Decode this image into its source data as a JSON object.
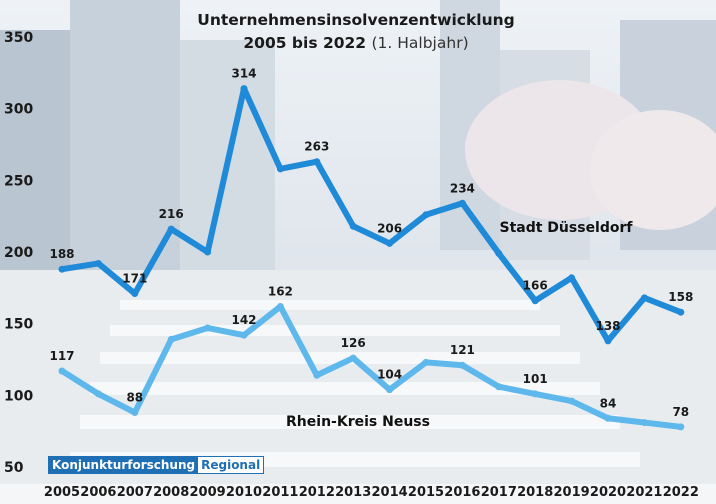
{
  "chart_data": {
    "type": "line",
    "title": "Unternehmensinsolvenzentwicklung",
    "subtitle_bold": "2005 bis 2022",
    "subtitle_light": "(1. Halbjahr)",
    "categories": [
      "2005",
      "2006",
      "2007",
      "2008",
      "2009",
      "2010",
      "2011",
      "2012",
      "2013",
      "2014",
      "2015",
      "2016",
      "2017",
      "2018",
      "2019",
      "2020",
      "2021",
      "2022"
    ],
    "ylim": [
      50,
      350
    ],
    "yticks": [
      50,
      100,
      150,
      200,
      250,
      300,
      350
    ],
    "grid": false,
    "series": [
      {
        "name": "Stadt Düsseldorf",
        "color": "#1f8ad8",
        "values": [
          188,
          192,
          171,
          216,
          200,
          314,
          258,
          263,
          218,
          206,
          226,
          234,
          199,
          166,
          182,
          138,
          168,
          158
        ],
        "labeled": {
          "0": "188",
          "2": "171",
          "3": "216",
          "5": "314",
          "7": "263",
          "9": "206",
          "11": "234",
          "13": "166",
          "15": "138",
          "17": "158"
        }
      },
      {
        "name": "Rhein-Kreis Neuss",
        "color": "#5fb8ec",
        "values": [
          117,
          101,
          88,
          139,
          147,
          142,
          162,
          114,
          126,
          104,
          123,
          121,
          106,
          101,
          96,
          84,
          81,
          78
        ],
        "labeled": {
          "0": "117",
          "2": "88",
          "5": "142",
          "6": "162",
          "8": "126",
          "9": "104",
          "11": "121",
          "13": "101",
          "15": "84",
          "17": "78"
        }
      }
    ]
  },
  "logo": {
    "part1": "Konjunkturforschung",
    "part2": "Regional"
  }
}
